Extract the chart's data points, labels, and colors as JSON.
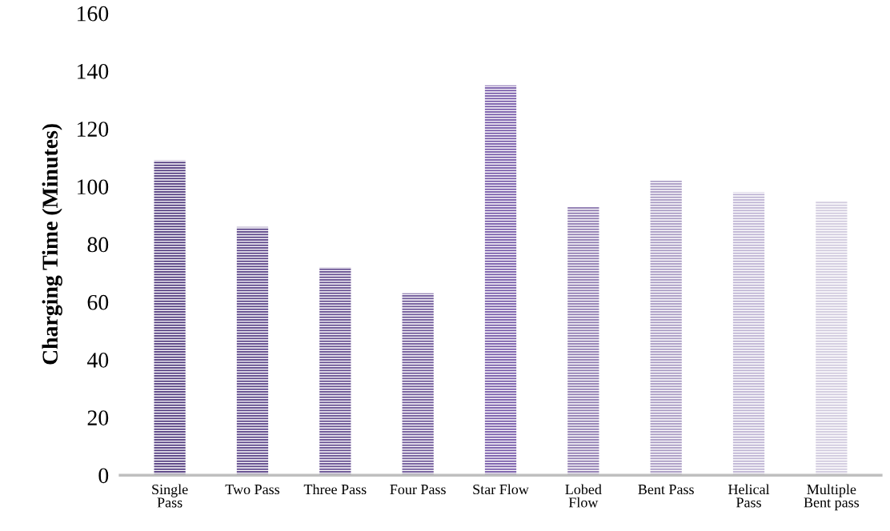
{
  "chart_data": {
    "type": "bar",
    "ylabel": "Charging Time (Minutes)",
    "categories": [
      "Single\nPass",
      "Two Pass",
      "Three Pass",
      "Four Pass",
      "Star Flow",
      "Lobed\nFlow",
      "Bent Pass",
      "Helical\nPass",
      "Multiple\nBent pass"
    ],
    "values": [
      109,
      86,
      72,
      63,
      135,
      93,
      102,
      98,
      95
    ],
    "colors": [
      "#5b4586",
      "#644e8f",
      "#6d5796",
      "#76609e",
      "#7d62ad",
      "#9582b5",
      "#ad9fc6",
      "#c2b8d6",
      "#d3cde0"
    ],
    "ylim": [
      0,
      160
    ],
    "yticks": [
      0,
      20,
      40,
      60,
      80,
      100,
      120,
      140,
      160
    ],
    "grid": false
  }
}
